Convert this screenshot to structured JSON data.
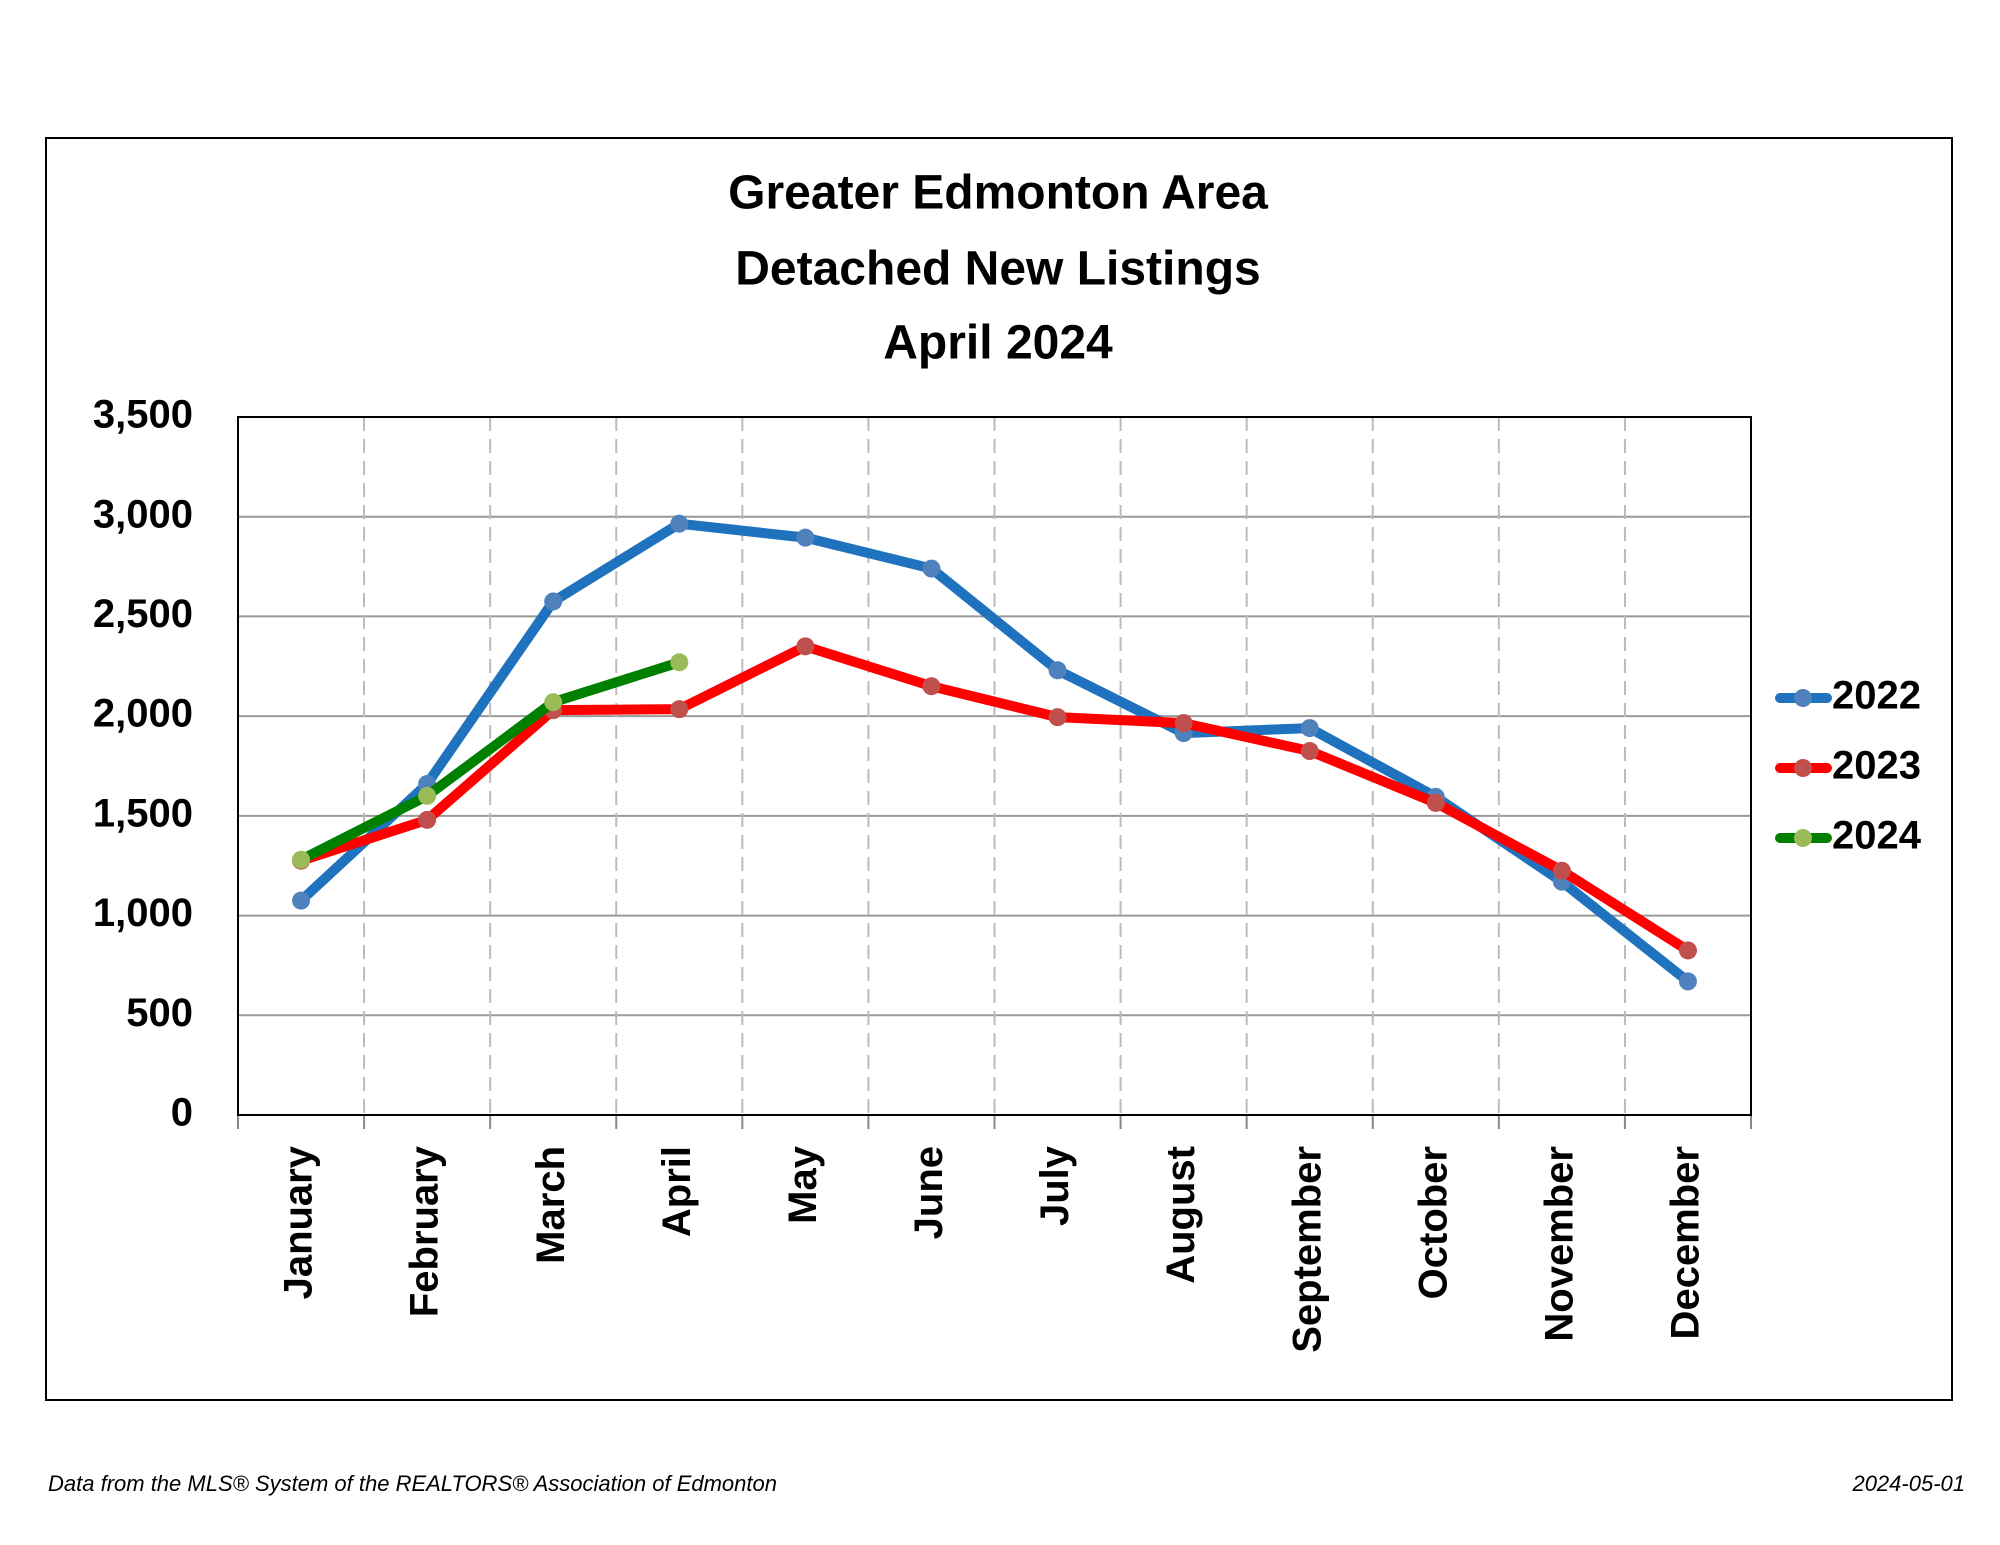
{
  "chart_data": {
    "type": "line",
    "title": [
      "Greater Edmonton Area",
      "Detached New Listings",
      "April 2024"
    ],
    "categories": [
      "January",
      "February",
      "March",
      "April",
      "May",
      "June",
      "July",
      "August",
      "September",
      "October",
      "November",
      "December"
    ],
    "series": [
      {
        "name": "2022",
        "color": "#1f72bd",
        "marker_color": "#4f81bd",
        "values": [
          1075,
          1660,
          2575,
          2965,
          2895,
          2740,
          2230,
          1915,
          1940,
          1595,
          1170,
          670
        ]
      },
      {
        "name": "2023",
        "color": "#ff0000",
        "marker_color": "#c0504d",
        "values": [
          1275,
          1480,
          2030,
          2035,
          2350,
          2150,
          1995,
          1965,
          1825,
          1565,
          1225,
          825
        ]
      },
      {
        "name": "2024",
        "color": "#008000",
        "marker_color": "#9bbb59",
        "values": [
          1280,
          1600,
          2070,
          2270,
          null,
          null,
          null,
          null,
          null,
          null,
          null,
          null
        ]
      }
    ],
    "ylim": [
      0,
      3500
    ],
    "yticks": [
      0,
      {
        "value": 500,
        "label": "500"
      },
      {
        "value": 1000,
        "label": "1,000"
      },
      {
        "value": 1500,
        "label": "1,500"
      },
      {
        "value": 2000,
        "label": "2,000"
      },
      {
        "value": 2500,
        "label": "2,500"
      },
      {
        "value": 3000,
        "label": "3,000"
      },
      {
        "value": 3500,
        "label": "3,500"
      }
    ],
    "grid": true,
    "legend": "right",
    "footer": {
      "source": "Data from the MLS® System of the REALTORS® Association of Edmonton",
      "date": "2024-05-01"
    }
  }
}
